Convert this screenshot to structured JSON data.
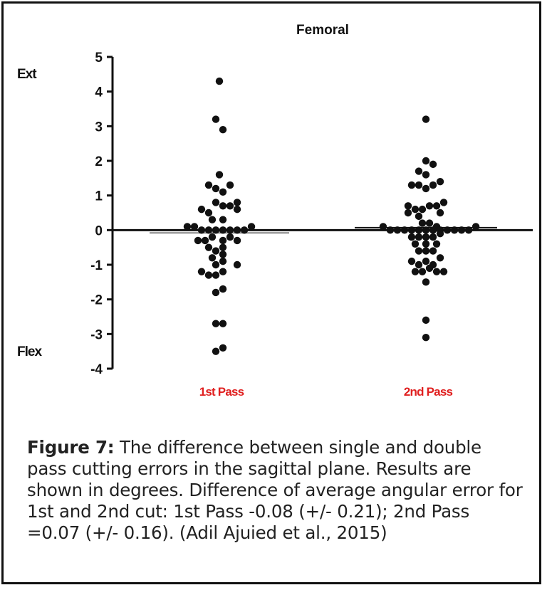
{
  "chart_data": {
    "type": "scatter",
    "title": "Femoral",
    "categories": [
      "1st Pass",
      "2nd Pass"
    ],
    "ylim": [
      -4,
      5
    ],
    "yticks": [
      5,
      4,
      3,
      2,
      1,
      0,
      -1,
      -2,
      -3,
      -4
    ],
    "y_annotations": [
      {
        "text": "Ext",
        "y": 4.5
      },
      {
        "text": "Flex",
        "y": -3.5
      }
    ],
    "grid": false,
    "series": [
      {
        "category": "1st Pass",
        "mean": -0.08,
        "points": [
          {
            "offset": 0.0,
            "y": 4.3
          },
          {
            "offset": -0.05,
            "y": 3.2
          },
          {
            "offset": 0.05,
            "y": 2.9
          },
          {
            "offset": 0.0,
            "y": 1.6
          },
          {
            "offset": -0.15,
            "y": 1.3
          },
          {
            "offset": -0.05,
            "y": 1.2
          },
          {
            "offset": 0.05,
            "y": 1.1
          },
          {
            "offset": 0.15,
            "y": 1.3
          },
          {
            "offset": -0.25,
            "y": 0.6
          },
          {
            "offset": -0.15,
            "y": 0.5
          },
          {
            "offset": -0.05,
            "y": 0.8
          },
          {
            "offset": 0.05,
            "y": 0.7
          },
          {
            "offset": 0.15,
            "y": 0.7
          },
          {
            "offset": 0.25,
            "y": 0.8
          },
          {
            "offset": 0.25,
            "y": 0.6
          },
          {
            "offset": -0.1,
            "y": 0.3
          },
          {
            "offset": 0.05,
            "y": 0.3
          },
          {
            "offset": -0.45,
            "y": 0.1
          },
          {
            "offset": -0.35,
            "y": 0.1
          },
          {
            "offset": -0.25,
            "y": 0.0
          },
          {
            "offset": -0.15,
            "y": 0.0
          },
          {
            "offset": -0.05,
            "y": 0.0
          },
          {
            "offset": 0.05,
            "y": 0.0
          },
          {
            "offset": 0.15,
            "y": 0.0
          },
          {
            "offset": 0.25,
            "y": 0.0
          },
          {
            "offset": 0.35,
            "y": 0.0
          },
          {
            "offset": 0.45,
            "y": 0.1
          },
          {
            "offset": -0.3,
            "y": -0.3
          },
          {
            "offset": -0.2,
            "y": -0.3
          },
          {
            "offset": -0.1,
            "y": -0.2
          },
          {
            "offset": 0.05,
            "y": -0.3
          },
          {
            "offset": 0.15,
            "y": -0.2
          },
          {
            "offset": 0.25,
            "y": -0.3
          },
          {
            "offset": -0.15,
            "y": -0.5
          },
          {
            "offset": -0.05,
            "y": -0.6
          },
          {
            "offset": 0.05,
            "y": -0.5
          },
          {
            "offset": -0.1,
            "y": -0.8
          },
          {
            "offset": 0.05,
            "y": -0.7
          },
          {
            "offset": -0.05,
            "y": -1.0
          },
          {
            "offset": 0.05,
            "y": -0.9
          },
          {
            "offset": 0.25,
            "y": -1.0
          },
          {
            "offset": -0.25,
            "y": -1.2
          },
          {
            "offset": -0.15,
            "y": -1.3
          },
          {
            "offset": -0.05,
            "y": -1.3
          },
          {
            "offset": 0.05,
            "y": -1.2
          },
          {
            "offset": -0.05,
            "y": -1.8
          },
          {
            "offset": 0.05,
            "y": -1.7
          },
          {
            "offset": -0.05,
            "y": -2.7
          },
          {
            "offset": 0.05,
            "y": -2.7
          },
          {
            "offset": -0.05,
            "y": -3.5
          },
          {
            "offset": 0.05,
            "y": -3.4
          }
        ]
      },
      {
        "category": "2nd Pass",
        "mean": 0.07,
        "points": [
          {
            "offset": 0.0,
            "y": 3.2
          },
          {
            "offset": 0.0,
            "y": 2.0
          },
          {
            "offset": 0.1,
            "y": 1.9
          },
          {
            "offset": -0.1,
            "y": 1.7
          },
          {
            "offset": 0.0,
            "y": 1.6
          },
          {
            "offset": -0.2,
            "y": 1.3
          },
          {
            "offset": -0.1,
            "y": 1.3
          },
          {
            "offset": 0.0,
            "y": 1.2
          },
          {
            "offset": 0.1,
            "y": 1.3
          },
          {
            "offset": 0.2,
            "y": 1.4
          },
          {
            "offset": -0.25,
            "y": 0.7
          },
          {
            "offset": -0.15,
            "y": 0.6
          },
          {
            "offset": -0.05,
            "y": 0.6
          },
          {
            "offset": 0.05,
            "y": 0.7
          },
          {
            "offset": 0.15,
            "y": 0.7
          },
          {
            "offset": 0.25,
            "y": 0.8
          },
          {
            "offset": -0.25,
            "y": 0.5
          },
          {
            "offset": -0.1,
            "y": 0.4
          },
          {
            "offset": 0.2,
            "y": 0.5
          },
          {
            "offset": -0.05,
            "y": 0.2
          },
          {
            "offset": 0.05,
            "y": 0.2
          },
          {
            "offset": 0.15,
            "y": 0.1
          },
          {
            "offset": -0.6,
            "y": 0.1
          },
          {
            "offset": -0.5,
            "y": 0.0
          },
          {
            "offset": -0.4,
            "y": 0.0
          },
          {
            "offset": -0.3,
            "y": 0.0
          },
          {
            "offset": -0.2,
            "y": 0.0
          },
          {
            "offset": -0.1,
            "y": 0.0
          },
          {
            "offset": 0.0,
            "y": 0.0
          },
          {
            "offset": 0.1,
            "y": 0.0
          },
          {
            "offset": 0.2,
            "y": 0.0
          },
          {
            "offset": 0.3,
            "y": 0.0
          },
          {
            "offset": 0.4,
            "y": 0.0
          },
          {
            "offset": 0.5,
            "y": 0.0
          },
          {
            "offset": 0.6,
            "y": 0.0
          },
          {
            "offset": 0.7,
            "y": 0.1
          },
          {
            "offset": -0.2,
            "y": -0.2
          },
          {
            "offset": -0.1,
            "y": -0.2
          },
          {
            "offset": 0.0,
            "y": -0.2
          },
          {
            "offset": 0.1,
            "y": -0.2
          },
          {
            "offset": 0.2,
            "y": -0.1
          },
          {
            "offset": -0.15,
            "y": -0.4
          },
          {
            "offset": 0.0,
            "y": -0.4
          },
          {
            "offset": 0.15,
            "y": -0.4
          },
          {
            "offset": -0.1,
            "y": -0.6
          },
          {
            "offset": 0.0,
            "y": -0.6
          },
          {
            "offset": 0.1,
            "y": -0.6
          },
          {
            "offset": -0.2,
            "y": -0.9
          },
          {
            "offset": -0.1,
            "y": -1.0
          },
          {
            "offset": 0.0,
            "y": -0.9
          },
          {
            "offset": 0.1,
            "y": -1.0
          },
          {
            "offset": 0.2,
            "y": -0.8
          },
          {
            "offset": -0.15,
            "y": -1.2
          },
          {
            "offset": -0.05,
            "y": -1.2
          },
          {
            "offset": 0.05,
            "y": -1.1
          },
          {
            "offset": 0.15,
            "y": -1.2
          },
          {
            "offset": 0.25,
            "y": -1.2
          },
          {
            "offset": 0.0,
            "y": -1.5
          },
          {
            "offset": 0.0,
            "y": -2.6
          },
          {
            "offset": 0.0,
            "y": -3.1
          }
        ]
      }
    ],
    "colors": {
      "axis": "#111111",
      "points": "#111111",
      "category_labels": "#e02020",
      "mean_line_1": "#888888",
      "mean_line_2": "#111111"
    }
  },
  "caption": {
    "lead": "Figure 7:",
    "text": " The difference between single and double pass cutting errors in the sagittal plane. Results are shown in degrees. Difference of average angular error for 1st and 2nd cut: 1st Pass -0.08 (+/- 0.21); 2nd Pass =0.07 (+/- 0.16). (Adil Ajuied et al., 2015)"
  }
}
